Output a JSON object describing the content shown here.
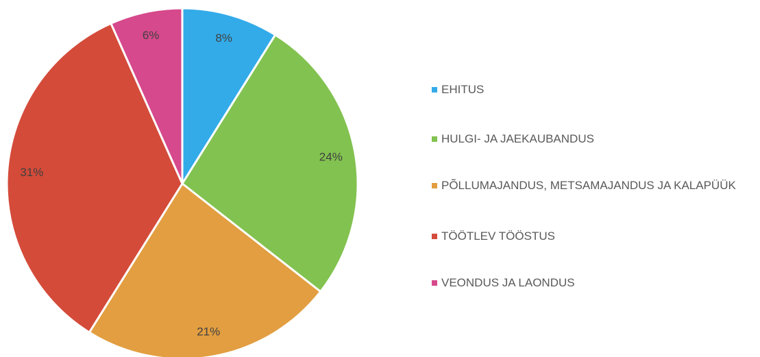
{
  "chart_data": {
    "type": "pie",
    "categories": [
      "EHITUS",
      "HULGI- JA JAEKAUBANDUS",
      "PÕLLUMAJANDUS, METSAMAJANDUS JA KALAPÜÜK",
      "TÖÖTLEV TÖÖSTUS",
      "VEONDUS JA LAONDUS"
    ],
    "values": [
      8,
      24,
      21,
      31,
      6
    ],
    "value_labels": [
      "8%",
      "24%",
      "21%",
      "31%",
      "6%"
    ],
    "colors": [
      "#33abe9",
      "#82c250",
      "#e29e40",
      "#d44b3a",
      "#d6498c"
    ],
    "legend": "right"
  }
}
